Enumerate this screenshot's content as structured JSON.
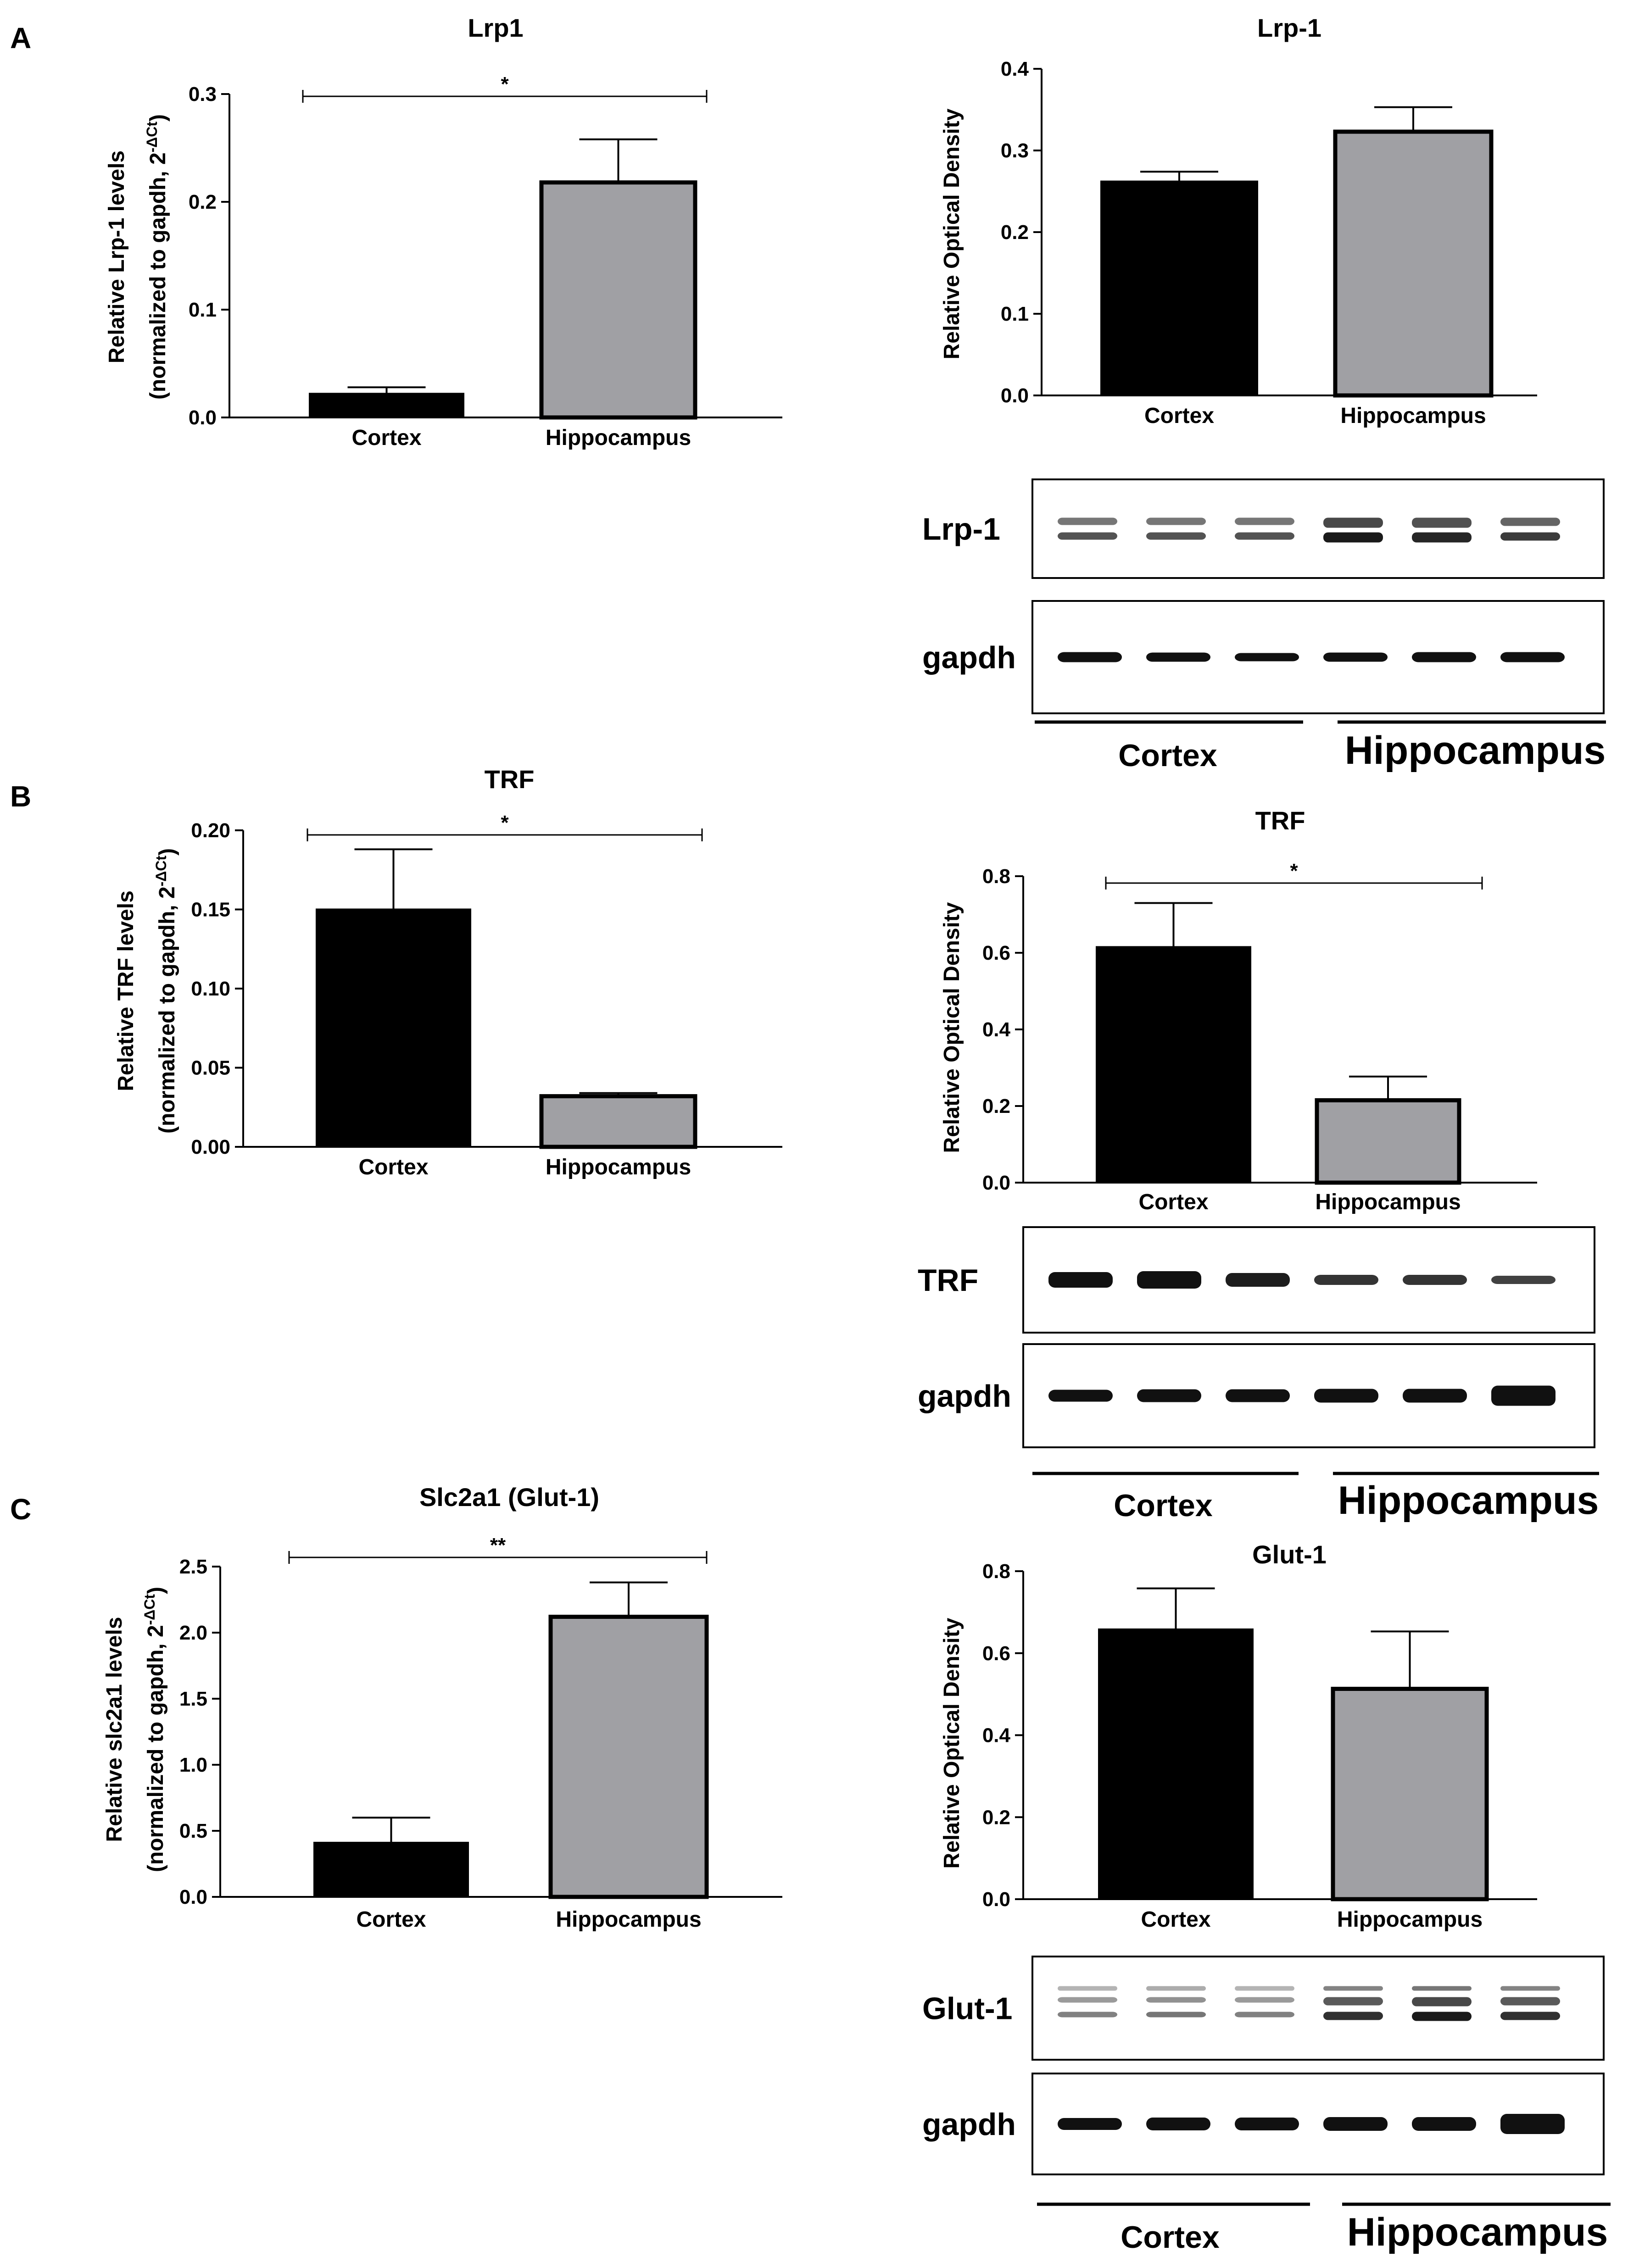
{
  "panels": [
    "A",
    "B",
    "C"
  ],
  "chart_data": [
    {
      "type": "bar",
      "title": "Lrp1",
      "ylabel": [
        "Relative Lrp-1 levels",
        "(normalized to gapdh, 2^-ΔCt)"
      ],
      "categories": [
        "Cortex",
        "Hippocampus"
      ],
      "values": [
        0.022,
        0.218
      ],
      "errors": [
        0.006,
        0.04
      ],
      "ylim": [
        0,
        0.3
      ],
      "yticks": [
        "0.0",
        "0.1",
        "0.2",
        "0.3"
      ],
      "significance": "*",
      "colors": [
        "#000000",
        "#a0a0a4"
      ]
    },
    {
      "type": "bar",
      "title": "Lrp-1",
      "ylabel": [
        "Relative Optical Density"
      ],
      "categories": [
        "Cortex",
        "Hippocampus"
      ],
      "values": [
        0.262,
        0.323
      ],
      "errors": [
        0.012,
        0.03
      ],
      "ylim": [
        0,
        0.4
      ],
      "yticks": [
        "0.0",
        "0.1",
        "0.2",
        "0.3",
        "0.4"
      ],
      "significance": "",
      "colors": [
        "#000000",
        "#a0a0a4"
      ]
    },
    {
      "type": "bar",
      "title": "TRF",
      "ylabel": [
        "Relative TRF levels",
        "(normalized to gapdh, 2^-ΔCt)"
      ],
      "categories": [
        "Cortex",
        "Hippocampus"
      ],
      "values": [
        0.15,
        0.032
      ],
      "errors": [
        0.038,
        0.002
      ],
      "ylim": [
        0,
        0.2
      ],
      "yticks": [
        "0.00",
        "0.05",
        "0.10",
        "0.15",
        "0.20"
      ],
      "significance": "*",
      "colors": [
        "#000000",
        "#a0a0a4"
      ]
    },
    {
      "type": "bar",
      "title": "TRF",
      "ylabel": [
        "Relative Optical Density"
      ],
      "categories": [
        "Cortex",
        "Hippocampus"
      ],
      "values": [
        0.615,
        0.215
      ],
      "errors": [
        0.115,
        0.062
      ],
      "ylim": [
        0,
        0.8
      ],
      "yticks": [
        "0.0",
        "0.2",
        "0.4",
        "0.6",
        "0.8"
      ],
      "significance": "*",
      "colors": [
        "#000000",
        "#a0a0a4"
      ]
    },
    {
      "type": "bar",
      "title": "Slc2a1 (Glut-1)",
      "ylabel": [
        "Relative slc2a1 levels",
        "(normalized to gapdh, 2^-ΔCt)"
      ],
      "categories": [
        "Cortex",
        "Hippocampus"
      ],
      "values": [
        0.41,
        2.12
      ],
      "errors": [
        0.19,
        0.26
      ],
      "ylim": [
        0,
        2.5
      ],
      "yticks": [
        "0.0",
        "0.5",
        "1.0",
        "1.5",
        "2.0",
        "2.5"
      ],
      "significance": "**",
      "colors": [
        "#000000",
        "#a0a0a4"
      ]
    },
    {
      "type": "bar",
      "title": "Glut-1",
      "ylabel": [
        "Relative Optical Density"
      ],
      "categories": [
        "Cortex",
        "Hippocampus"
      ],
      "values": [
        0.658,
        0.513
      ],
      "errors": [
        0.1,
        0.14
      ],
      "ylim": [
        0,
        0.8
      ],
      "yticks": [
        "0.0",
        "0.2",
        "0.4",
        "0.6",
        "0.8"
      ],
      "significance": "",
      "colors": [
        "#000000",
        "#a0a0a4"
      ]
    }
  ],
  "blots": [
    {
      "protein": "Lrp-1",
      "loading_control": "gapdh",
      "groups": [
        "Cortex",
        "Hippocampus"
      ]
    },
    {
      "protein": "TRF",
      "loading_control": "gapdh",
      "groups": [
        "Cortex",
        "Hippocampus"
      ]
    },
    {
      "protein": "Glut-1",
      "loading_control": "gapdh",
      "groups": [
        "Cortex",
        "Hippocampus"
      ]
    }
  ]
}
